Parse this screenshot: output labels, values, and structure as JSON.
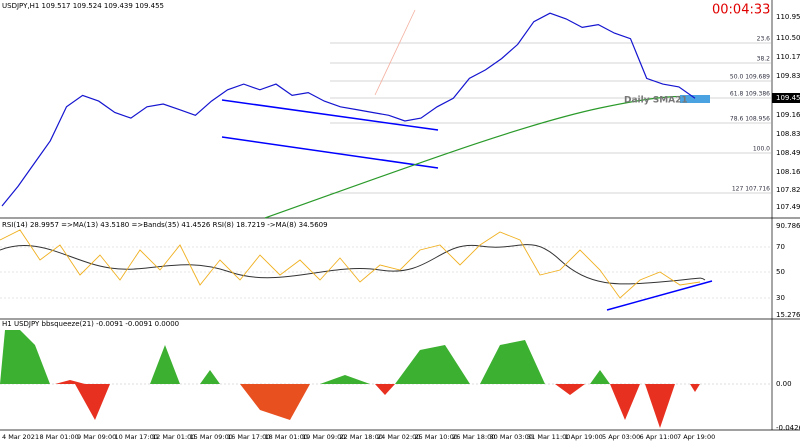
{
  "header": {
    "title": "USDJPY,H1  109.517 109.524 109.439 109.455",
    "timer": "00:04:33",
    "sma_label": "Daily SMA21"
  },
  "price_axis": {
    "labels": [
      "110.955",
      "110.505",
      "110.170",
      "109.835",
      "109.455",
      "109.165",
      "108.830",
      "108.495",
      "108.160",
      "107.825",
      "107.490"
    ],
    "current": "109.455"
  },
  "fib_levels": [
    "23.6",
    "38.2",
    "50.0  109.689",
    "61.8  109.386",
    "78.6  108.956",
    "100.0",
    "127  107.716"
  ],
  "price": {
    "values": [
      107.55,
      107.9,
      108.3,
      108.7,
      109.3,
      109.5,
      109.4,
      109.2,
      109.1,
      109.3,
      109.35,
      109.25,
      109.15,
      109.4,
      109.6,
      109.7,
      109.6,
      109.7,
      109.5,
      109.55,
      109.4,
      109.3,
      109.25,
      109.2,
      109.15,
      109.05,
      109.1,
      109.3,
      109.45,
      109.8,
      109.95,
      110.15,
      110.4,
      110.8,
      110.95,
      110.85,
      110.7,
      110.75,
      110.6,
      110.5,
      109.8,
      109.7,
      109.65,
      109.45
    ]
  },
  "rsi_panel": {
    "title": "RSI(14) 28.9957 =>MA(13) 43.5180 =>Bands(35) 41.4526 RSI(8) 18.7219 ->MA(8) 34.5609",
    "axis": [
      "90.786",
      "70",
      "50",
      "30",
      "15.2762"
    ]
  },
  "squeeze_panel": {
    "title": "H1 USDJPY bbsqueeze(21) -0.0091 -0.0091 0.0000",
    "axis": [
      "0.00",
      "-0.0426"
    ]
  },
  "time_axis": [
    "4 Mar 2021",
    "8 Mar 01:00",
    "9 Mar 09:00",
    "10 Mar 17:00",
    "12 Mar 01:00",
    "15 Mar 09:00",
    "16 Mar 17:00",
    "18 Mar 01:00",
    "19 Mar 09:00",
    "22 Mar 18:00",
    "24 Mar 02:00",
    "25 Mar 10:00",
    "26 Mar 18:00",
    "30 Mar 03:00",
    "31 Mar 11:00",
    "1 Apr 19:00",
    "5 Apr 03:00",
    "6 Apr 11:00",
    "7 Apr 19:00"
  ]
}
